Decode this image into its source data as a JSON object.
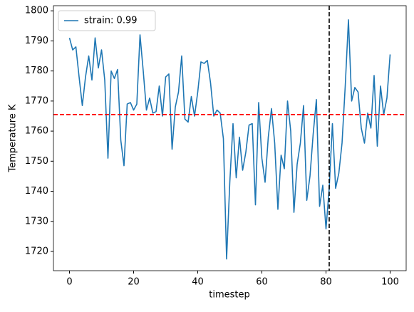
{
  "chart_data": {
    "type": "line",
    "xlabel": "timestep",
    "ylabel": "Temperature K",
    "x": [
      0,
      1,
      2,
      3,
      4,
      5,
      6,
      7,
      8,
      9,
      10,
      11,
      12,
      13,
      14,
      15,
      16,
      17,
      18,
      19,
      20,
      21,
      22,
      23,
      24,
      25,
      26,
      27,
      28,
      29,
      30,
      31,
      32,
      33,
      34,
      35,
      36,
      37,
      38,
      39,
      40,
      41,
      42,
      43,
      44,
      45,
      46,
      47,
      48,
      49,
      50,
      51,
      52,
      53,
      54,
      55,
      56,
      57,
      58,
      59,
      60,
      61,
      62,
      63,
      64,
      65,
      66,
      67,
      68,
      69,
      70,
      71,
      72,
      73,
      74,
      75,
      76,
      77,
      78,
      79,
      80,
      81,
      82,
      83,
      84,
      85,
      86,
      87,
      88,
      89,
      90,
      91,
      92,
      93,
      94,
      95,
      96,
      97,
      98,
      99,
      100
    ],
    "series": [
      {
        "name": "strain: 0.99",
        "color": "#1f77b4",
        "values": [
          1791,
          1787,
          1788,
          1778,
          1768.5,
          1778,
          1785,
          1777,
          1791,
          1781,
          1787,
          1777,
          1751,
          1780,
          1777.5,
          1780.5,
          1757,
          1748.5,
          1769,
          1769.5,
          1767,
          1769,
          1792,
          1780,
          1767,
          1771,
          1766,
          1766.5,
          1775,
          1765,
          1778,
          1779,
          1754,
          1768,
          1773,
          1785,
          1764,
          1763,
          1771.5,
          1765,
          1773,
          1783,
          1782.5,
          1783.5,
          1776,
          1765,
          1767,
          1766,
          1757.5,
          1717.5,
          1743,
          1762.5,
          1744.5,
          1758,
          1747,
          1753,
          1762,
          1762.5,
          1735.5,
          1769.5,
          1751,
          1743,
          1758,
          1767.5,
          1756,
          1734,
          1752,
          1747.5,
          1770,
          1760,
          1733,
          1749,
          1756,
          1768.5,
          1737,
          1745,
          1759,
          1770.5,
          1735,
          1742,
          1727.5,
          1741,
          1762.5,
          1741,
          1746,
          1756,
          1775,
          1797,
          1770,
          1774.5,
          1773,
          1761,
          1756,
          1766,
          1761,
          1778.5,
          1755,
          1775,
          1765.5,
          1771,
          1785.5
        ]
      }
    ],
    "hlines": [
      {
        "value": 1765.5,
        "color": "#ff0000",
        "linestyle": "dashed"
      }
    ],
    "vlines": [
      {
        "value": 81,
        "color": "#000000",
        "linestyle": "dashed"
      }
    ],
    "xlim": [
      -5,
      105
    ],
    "xticks": [
      0,
      20,
      40,
      60,
      80,
      100
    ],
    "ylim": [
      1713.6,
      1801.7
    ],
    "yticks": [
      1720,
      1730,
      1740,
      1750,
      1760,
      1770,
      1780,
      1790,
      1800
    ],
    "legend": "upper left"
  }
}
